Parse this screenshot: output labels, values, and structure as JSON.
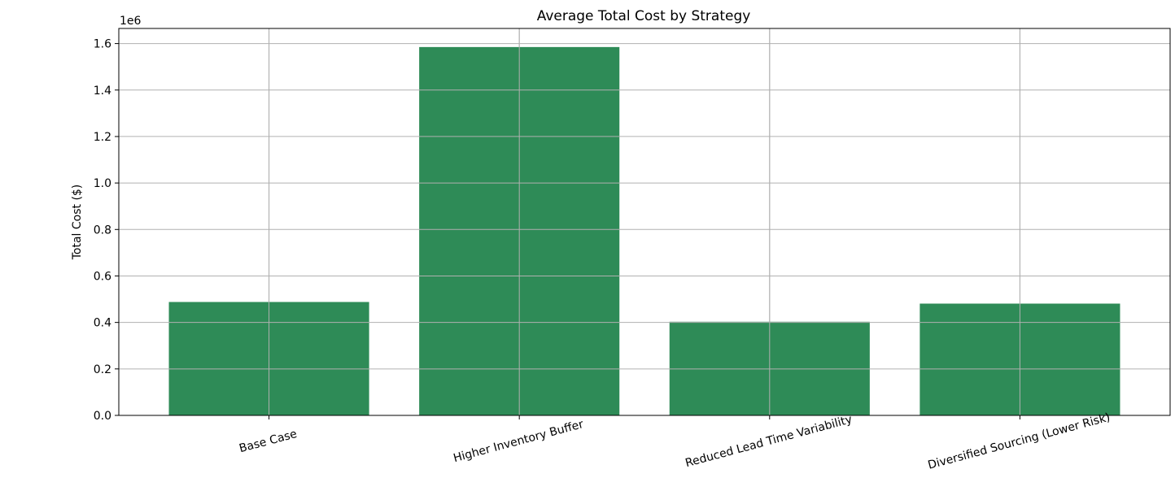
{
  "chart_data": {
    "type": "bar",
    "title": "Average Total Cost by Strategy",
    "xlabel": "",
    "ylabel": "Total Cost ($)",
    "y_offset_label": "1e6",
    "categories": [
      "Base Case",
      "Higher Inventory Buffer",
      "Reduced Lead Time Variability",
      "Diversified Sourcing (Lower Risk)"
    ],
    "values": [
      488000,
      1585000,
      403000,
      481000
    ],
    "ylim": [
      0,
      1.665
    ],
    "y_scale": 1000000,
    "yticks": [
      0.0,
      0.2,
      0.4,
      0.6,
      0.8,
      1.0,
      1.2,
      1.4,
      1.6
    ],
    "ytick_labels": [
      "0.0",
      "0.2",
      "0.4",
      "0.6",
      "0.8",
      "1.0",
      "1.2",
      "1.4",
      "1.6"
    ],
    "grid": true,
    "bar_color": "#2e8b57",
    "category_label_rotation": 15
  }
}
